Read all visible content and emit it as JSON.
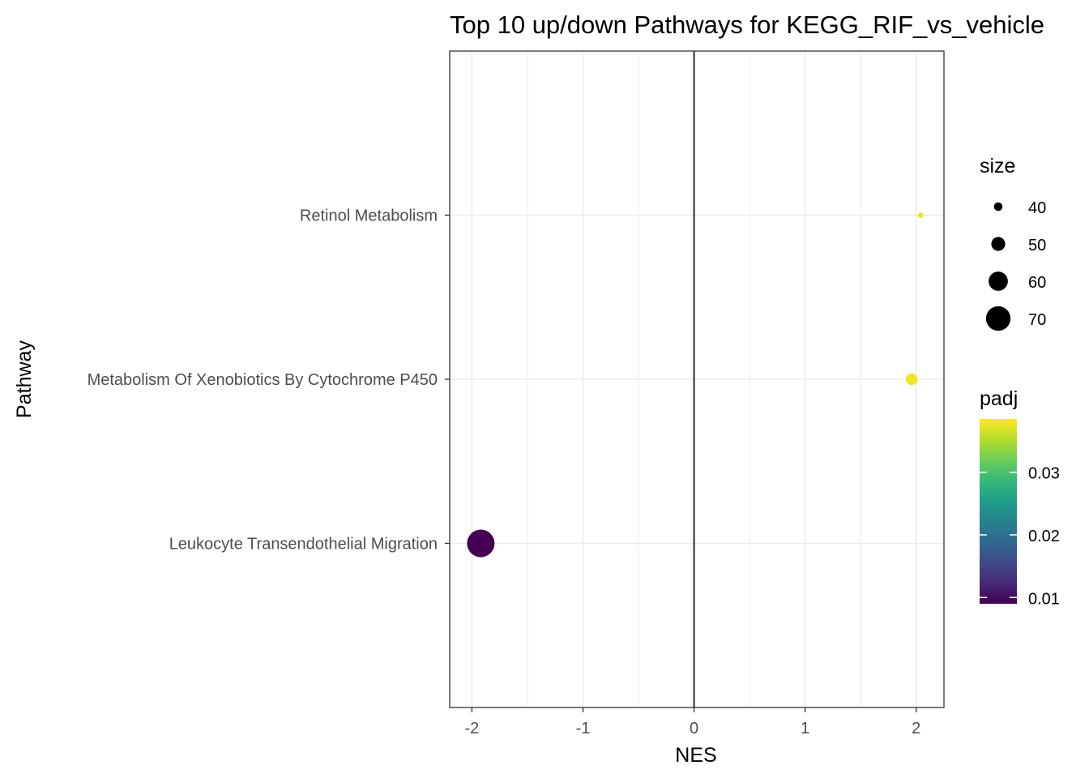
{
  "chart_data": {
    "type": "scatter",
    "title": "Top 10 up/down Pathways for  KEGG_RIF_vs_vehicle",
    "xlabel": "NES",
    "ylabel": "Pathway",
    "xlim": [
      -2.2,
      2.25
    ],
    "x_ticks": [
      "-2",
      "-1",
      "0",
      "1",
      "2"
    ],
    "x_tick_values": [
      -2,
      -1,
      0,
      1,
      2
    ],
    "categories": [
      "Leukocyte Transendothelial Migration",
      "Metabolism Of Xenobiotics By Cytochrome P450",
      "Retinol Metabolism"
    ],
    "vline_at": 0,
    "grid": true,
    "points": [
      {
        "pathway": "Retinol Metabolism",
        "NES": 2.04,
        "size": 34,
        "padj": 0.038
      },
      {
        "pathway": "Metabolism Of Xenobiotics By Cytochrome P450",
        "NES": 1.96,
        "size": 45,
        "padj": 0.038
      },
      {
        "pathway": "Leukocyte Transendothelial Migration",
        "NES": -1.92,
        "size": 73,
        "padj": 0.009
      }
    ],
    "legend_size": {
      "title": "size",
      "labels": [
        "40",
        "50",
        "60",
        "70"
      ],
      "values": [
        40,
        50,
        60,
        70
      ]
    },
    "legend_color": {
      "title": "padj",
      "labels": [
        "0.01",
        "0.02",
        "0.03"
      ],
      "values": [
        0.01,
        0.02,
        0.03
      ],
      "range": [
        0.009,
        0.0385
      ],
      "palette": [
        "#440154",
        "#482878",
        "#3E4A89",
        "#31688E",
        "#26828E",
        "#1F9E89",
        "#35B779",
        "#6DCD59",
        "#B4DE2C",
        "#FDE725"
      ]
    },
    "colors": {
      "panel_border": "#333333",
      "grid": "#EBEBEB",
      "vline": "#000000",
      "tick_text": "#4D4D4D",
      "title_text": "#000000"
    }
  }
}
